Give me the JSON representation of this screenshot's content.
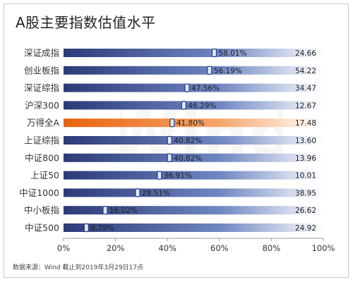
{
  "title": "A股主要指数估值水平",
  "source": "数据来源：Wind 截止到2019年3月29日17点",
  "watermark": "Wind",
  "colors": {
    "bar_start": "#2b3a78",
    "bar_mid": "#6f86c2",
    "bar_end": "#ffffff",
    "highlight_start": "#e8620c",
    "highlight_mid": "#f4a56c",
    "highlight_end": "#ffffff",
    "marker_fill": "#dde7f7",
    "marker_stroke": "#2b3a78",
    "axis": "#9a9a9a",
    "text": "#333333"
  },
  "chart_data": {
    "type": "bar",
    "orientation": "horizontal",
    "categories": [
      "深证成指",
      "创业板指",
      "深证综指",
      "沪深300",
      "万得全A",
      "上证综指",
      "中证800",
      "上证50",
      "中证1000",
      "中小板指",
      "中证500"
    ],
    "series": [
      {
        "values": [
          58.01,
          56.19,
          47.56,
          46.29,
          41.8,
          40.82,
          40.82,
          36.91,
          28.51,
          16.02,
          8.79
        ],
        "labels": [
          "58.01%",
          "56.19%",
          "47.56%",
          "46.29%",
          "41.80%",
          "40.82%",
          "40.82%",
          "36.91%",
          "28.51%",
          "16.02%",
          "8.79%"
        ]
      },
      {
        "values": [
          24.66,
          54.22,
          34.47,
          12.67,
          17.48,
          13.6,
          13.96,
          10.01,
          38.95,
          26.62,
          24.92
        ],
        "labels": [
          "24.66",
          "54.22",
          "34.47",
          "12.67",
          "17.48",
          "13.60",
          "13.96",
          "10.01",
          "38.95",
          "26.62",
          "24.92"
        ]
      }
    ],
    "highlight_category": "万得全A",
    "xlim": [
      0,
      100
    ],
    "xticks": [
      "0%",
      "20%",
      "40%",
      "60%",
      "80%",
      "100%"
    ],
    "grid": false,
    "legend": "none"
  }
}
